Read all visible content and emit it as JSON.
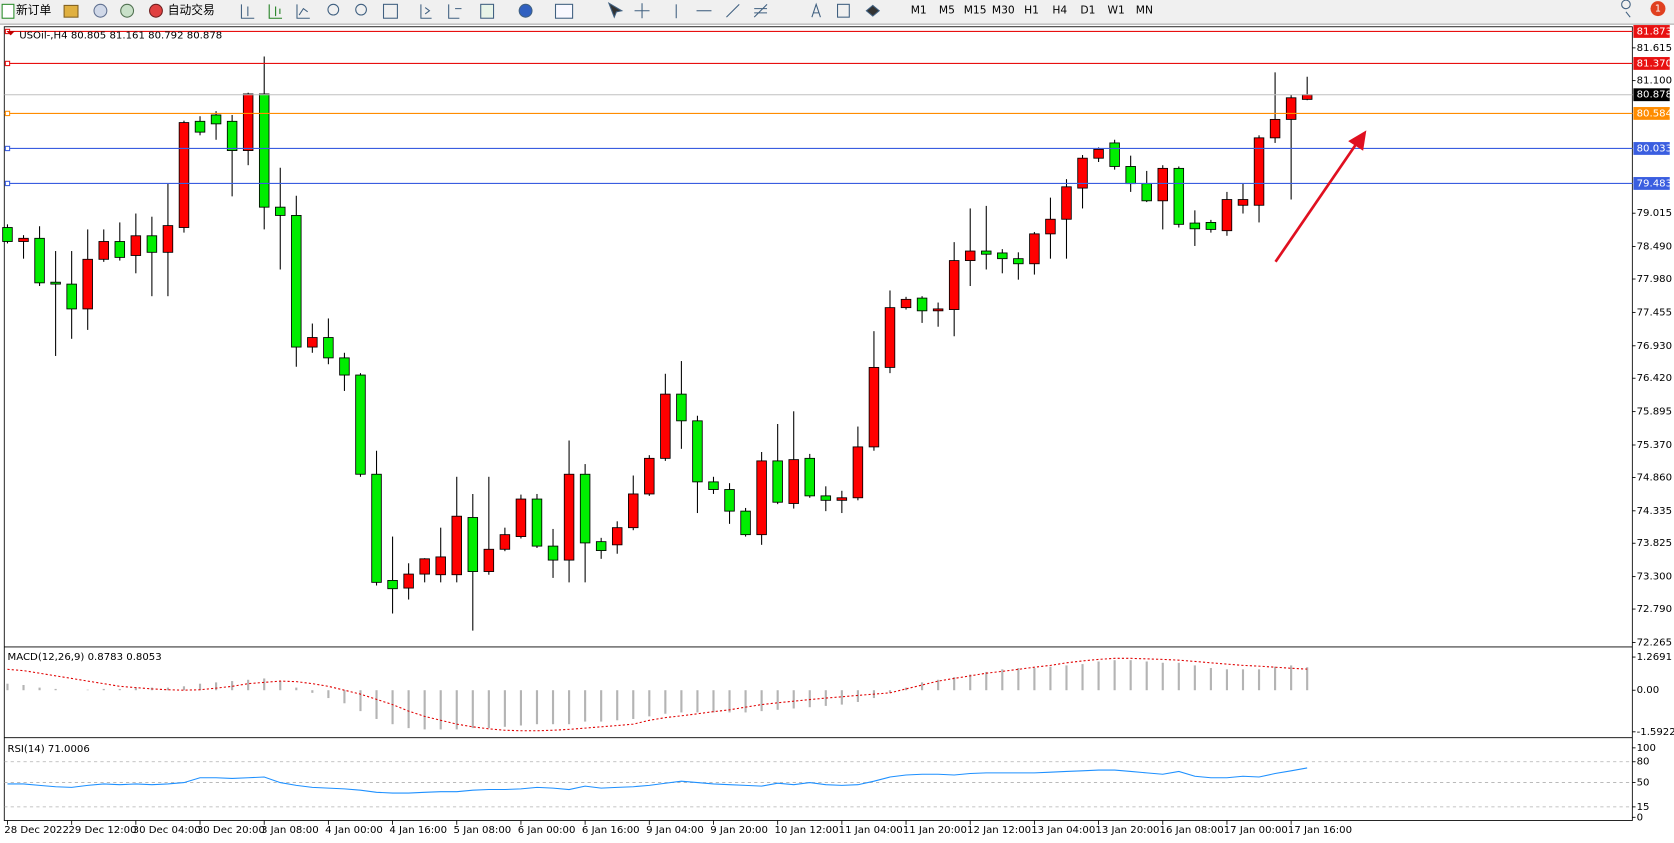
{
  "toolbar": {
    "new_order": "新订单",
    "auto_trading": "自动交易",
    "timeframes": [
      "M1",
      "M5",
      "M15",
      "M30",
      "H1",
      "H4",
      "D1",
      "W1",
      "MN"
    ],
    "notification_count": 1
  },
  "chart_data": [
    {
      "type": "candlestick",
      "title": "USOil-,H4",
      "up_color": "#ff0000",
      "down_color": "#00ee00",
      "categories": [
        "28 Dec 2022",
        null,
        null,
        null,
        "29 Dec 12:00",
        null,
        null,
        null,
        "30 Dec 04:00",
        null,
        null,
        null,
        "30 Dec 20:00",
        null,
        null,
        null,
        "3 Jan 08:00",
        null,
        null,
        null,
        "4 Jan 00:00",
        null,
        null,
        null,
        "4 Jan 16:00",
        null,
        null,
        null,
        "5 Jan 08:00",
        null,
        null,
        null,
        "6 Jan 00:00",
        null,
        null,
        null,
        "6 Jan 16:00",
        null,
        null,
        null,
        "9 Jan 04:00",
        null,
        null,
        null,
        "9 Jan 20:00",
        null,
        null,
        null,
        "10 Jan 12:00",
        null,
        null,
        null,
        "11 Jan 04:00",
        null,
        null,
        null,
        "11 Jan 20:00",
        null,
        null,
        null,
        "12 Jan 12:00",
        null,
        null,
        null,
        "13 Jan 04:00",
        null,
        null,
        null,
        "13 Jan 20:00",
        null,
        null,
        null,
        "16 Jan 08:00",
        null,
        null,
        null,
        "17 Jan 00:00",
        null,
        null,
        null,
        "17 Jan 16:00",
        null
      ],
      "open": [
        78.79,
        78.57,
        78.62,
        77.93,
        77.9,
        77.51,
        78.29,
        78.57,
        78.35,
        78.66,
        78.4,
        78.79,
        80.46,
        80.56,
        80.46,
        80.0,
        80.89,
        79.11,
        78.98,
        76.91,
        77.06,
        76.74,
        76.47,
        74.91,
        73.24,
        73.12,
        73.34,
        73.33,
        73.33,
        74.23,
        73.38,
        73.73,
        73.93,
        74.52,
        73.78,
        73.56,
        74.91,
        73.85,
        73.8,
        74.07,
        74.6,
        75.16,
        76.17,
        75.75,
        74.79,
        74.67,
        74.33,
        73.96,
        75.12,
        74.45,
        75.16,
        74.57,
        74.5,
        74.54,
        75.34,
        76.59,
        77.53,
        77.68,
        77.48,
        77.5,
        78.27,
        78.42,
        78.39,
        78.3,
        78.22,
        78.69,
        78.92,
        79.41,
        79.88,
        80.12,
        79.75,
        79.48,
        79.21,
        79.72,
        78.86,
        78.87,
        78.74,
        79.14,
        79.14,
        80.2,
        80.49,
        80.805
      ],
      "high": [
        78.84,
        78.67,
        78.81,
        78.42,
        78.42,
        78.76,
        78.76,
        78.87,
        79.01,
        78.96,
        79.48,
        80.47,
        80.54,
        80.62,
        80.56,
        80.91,
        81.48,
        79.73,
        79.29,
        77.28,
        77.36,
        76.82,
        76.5,
        75.28,
        73.93,
        73.51,
        73.59,
        74.07,
        74.87,
        74.6,
        74.87,
        74.07,
        74.59,
        74.6,
        74.05,
        75.44,
        75.07,
        73.91,
        74.17,
        74.89,
        75.21,
        76.49,
        76.69,
        75.83,
        74.87,
        74.77,
        74.38,
        75.26,
        75.7,
        75.9,
        75.23,
        74.72,
        74.65,
        75.66,
        77.16,
        77.8,
        77.7,
        77.71,
        77.61,
        78.56,
        79.09,
        79.13,
        78.45,
        78.4,
        78.72,
        79.26,
        79.55,
        79.93,
        80.05,
        80.17,
        79.92,
        79.68,
        79.77,
        79.75,
        79.06,
        78.91,
        79.35,
        79.48,
        80.24,
        81.23,
        80.88,
        81.161
      ],
      "low": [
        78.54,
        78.3,
        77.87,
        76.77,
        77.04,
        77.18,
        78.25,
        78.27,
        78.07,
        77.71,
        77.71,
        78.71,
        80.24,
        80.17,
        79.28,
        79.77,
        78.76,
        78.13,
        76.6,
        76.82,
        76.64,
        76.22,
        74.87,
        73.16,
        72.72,
        72.94,
        73.21,
        73.21,
        73.21,
        72.45,
        73.33,
        73.7,
        73.9,
        73.75,
        73.28,
        73.21,
        73.21,
        73.58,
        73.66,
        74.03,
        74.57,
        75.12,
        75.31,
        74.3,
        74.6,
        74.13,
        73.93,
        73.8,
        74.44,
        74.37,
        74.54,
        74.33,
        74.3,
        74.5,
        75.28,
        76.5,
        77.5,
        77.29,
        77.23,
        77.08,
        77.87,
        78.13,
        78.07,
        77.97,
        78.05,
        78.3,
        78.3,
        79.09,
        79.82,
        79.7,
        79.35,
        79.19,
        78.76,
        78.79,
        78.5,
        78.71,
        78.66,
        79.01,
        78.87,
        80.12,
        79.23,
        80.792
      ],
      "close": [
        78.57,
        78.62,
        77.92,
        77.9,
        77.51,
        78.29,
        78.57,
        78.32,
        78.66,
        78.4,
        78.82,
        80.44,
        80.29,
        80.42,
        80.0,
        80.89,
        79.11,
        78.98,
        76.91,
        77.06,
        76.74,
        76.47,
        74.91,
        73.21,
        73.11,
        73.34,
        73.58,
        73.61,
        74.25,
        73.38,
        73.73,
        73.96,
        74.52,
        73.78,
        73.56,
        74.91,
        73.83,
        73.71,
        74.07,
        74.6,
        75.16,
        76.17,
        75.75,
        74.79,
        74.67,
        74.33,
        73.96,
        75.12,
        74.47,
        75.14,
        74.57,
        74.5,
        74.54,
        75.34,
        76.59,
        77.53,
        77.66,
        77.48,
        77.51,
        78.27,
        78.42,
        78.37,
        78.3,
        78.22,
        78.69,
        78.92,
        79.43,
        79.88,
        80.02,
        79.75,
        79.48,
        79.21,
        79.72,
        78.84,
        78.77,
        78.76,
        79.23,
        79.23,
        80.2,
        80.49,
        80.83,
        80.878
      ],
      "ylim": [
        72.22,
        81.93
      ],
      "yticks": [
        81.615,
        {
          "value": 81.1,
          "label": "81.100"
        },
        79.015,
        {
          "value": 78.49,
          "label": "78.490"
        },
        {
          "value": 77.98,
          "label": "77.980"
        },
        77.455,
        {
          "value": 76.93,
          "label": "76.930"
        },
        {
          "value": 76.42,
          "label": "76.420"
        },
        75.895,
        {
          "value": 75.37,
          "label": "75.370"
        },
        {
          "value": 74.86,
          "label": "74.860"
        },
        74.335,
        73.825,
        {
          "value": 73.3,
          "label": "73.300"
        },
        {
          "value": 72.79,
          "label": "72.790"
        },
        72.265
      ],
      "levels": [
        {
          "value": 81.873,
          "color": "#e81010"
        },
        {
          "value": 81.37,
          "label": "81.370",
          "color": "#e81010"
        },
        {
          "value": 80.584,
          "color": "#ff8c00"
        },
        {
          "value": 80.033,
          "color": "#3a5ee0"
        },
        {
          "value": 79.483,
          "color": "#3a5ee0"
        }
      ]
    },
    {
      "type": "macd",
      "title": "MACD(12,26,9)",
      "color": "#b4b4b4",
      "signal_color": "#e00000",
      "values": [
        0.25,
        0.2,
        0.1,
        0.05,
        0.0,
        0.02,
        0.05,
        0.05,
        0.1,
        0.1,
        0.1,
        0.15,
        0.25,
        0.3,
        0.35,
        0.4,
        0.45,
        0.35,
        0.1,
        -0.1,
        -0.3,
        -0.5,
        -0.8,
        -1.1,
        -1.3,
        -1.45,
        -1.5,
        -1.5,
        -1.5,
        -1.45,
        -1.45,
        -1.4,
        -1.35,
        -1.3,
        -1.3,
        -1.3,
        -1.2,
        -1.2,
        -1.15,
        -1.1,
        -1.0,
        -0.9,
        -0.85,
        -0.85,
        -0.85,
        -0.85,
        -0.85,
        -0.8,
        -0.75,
        -0.7,
        -0.65,
        -0.6,
        -0.55,
        -0.45,
        -0.3,
        -0.1,
        0.1,
        0.3,
        0.4,
        0.5,
        0.6,
        0.7,
        0.8,
        0.85,
        0.85,
        0.9,
        0.95,
        1.0,
        1.1,
        1.15,
        1.15,
        1.1,
        1.05,
        1.05,
        0.95,
        0.85,
        0.8,
        0.8,
        0.8,
        0.9,
        0.95,
        0.8783
      ],
      "signal": [
        0.8,
        0.75,
        0.65,
        0.55,
        0.45,
        0.35,
        0.25,
        0.15,
        0.1,
        0.05,
        0.02,
        0.0,
        0.02,
        0.08,
        0.15,
        0.25,
        0.3,
        0.35,
        0.33,
        0.25,
        0.15,
        0.0,
        -0.15,
        -0.35,
        -0.55,
        -0.8,
        -1.0,
        -1.15,
        -1.3,
        -1.4,
        -1.48,
        -1.53,
        -1.55,
        -1.55,
        -1.53,
        -1.5,
        -1.45,
        -1.4,
        -1.35,
        -1.3,
        -1.15,
        -1.05,
        -0.98,
        -0.9,
        -0.82,
        -0.75,
        -0.65,
        -0.55,
        -0.48,
        -0.42,
        -0.36,
        -0.3,
        -0.25,
        -0.2,
        -0.15,
        -0.1,
        0.05,
        0.2,
        0.35,
        0.45,
        0.55,
        0.65,
        0.72,
        0.8,
        0.88,
        0.95,
        1.05,
        1.12,
        1.18,
        1.22,
        1.22,
        1.2,
        1.18,
        1.15,
        1.1,
        1.05,
        1.0,
        0.95,
        0.92,
        0.88,
        0.84,
        0.8053
      ],
      "ylim": [
        -1.756,
        1.596
      ],
      "yticks": [
        1.2691,
        {
          "value": 0,
          "label": "0.00"
        },
        -1.5922
      ]
    },
    {
      "type": "line",
      "title": "RSI(14)",
      "color": "#1e90ff",
      "values": [
        48,
        48,
        46,
        44,
        43,
        46,
        48,
        47,
        48,
        47,
        48,
        50,
        57,
        57,
        56,
        57,
        58,
        50,
        46,
        43,
        42,
        41,
        39,
        36,
        35,
        35,
        36,
        37,
        37,
        39,
        40,
        40,
        41,
        43,
        42,
        40,
        45,
        42,
        43,
        44,
        46,
        49,
        52,
        50,
        48,
        47,
        46,
        45,
        49,
        47,
        50,
        47,
        46,
        47,
        52,
        58,
        61,
        62,
        62,
        61,
        63,
        64,
        64,
        64,
        64,
        65,
        66,
        67,
        68,
        68,
        66,
        64,
        62,
        66,
        59,
        57,
        57,
        59,
        58,
        63,
        67,
        71.0006
      ],
      "ylim": [
        0,
        100
      ],
      "yticks": [
        100,
        80,
        50,
        15,
        0
      ]
    }
  ]
}
